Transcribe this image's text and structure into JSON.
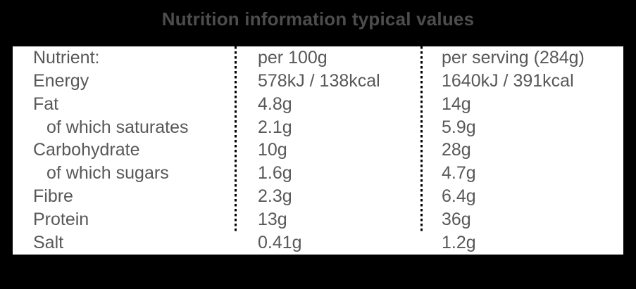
{
  "title": "Nutrition information typical values",
  "colors": {
    "background": "#000000",
    "panel": "#ffffff",
    "title_text": "#4d4d4d",
    "table_text": "#58585a",
    "divider": "#000000"
  },
  "table": {
    "headers": {
      "nutrient": "Nutrient:",
      "per_100g": "per 100g",
      "per_serving": "per serving (284g)"
    },
    "rows": [
      {
        "nutrient": "Energy",
        "per_100g": "578kJ / 138kcal",
        "per_serving": "1640kJ / 391kcal"
      },
      {
        "nutrient": "Fat",
        "per_100g": "4.8g",
        "per_serving": "14g"
      },
      {
        "nutrient": "of which saturates",
        "per_100g": "2.1g",
        "per_serving": "5.9g"
      },
      {
        "nutrient": "Carbohydrate",
        "per_100g": "10g",
        "per_serving": "28g"
      },
      {
        "nutrient": "of which sugars",
        "per_100g": "1.6g",
        "per_serving": "4.7g"
      },
      {
        "nutrient": "Fibre",
        "per_100g": "2.3g",
        "per_serving": "6.4g"
      },
      {
        "nutrient": "Protein",
        "per_100g": "13g",
        "per_serving": "36g"
      },
      {
        "nutrient": "Salt",
        "per_100g": "0.41g",
        "per_serving": "1.2g"
      }
    ]
  }
}
